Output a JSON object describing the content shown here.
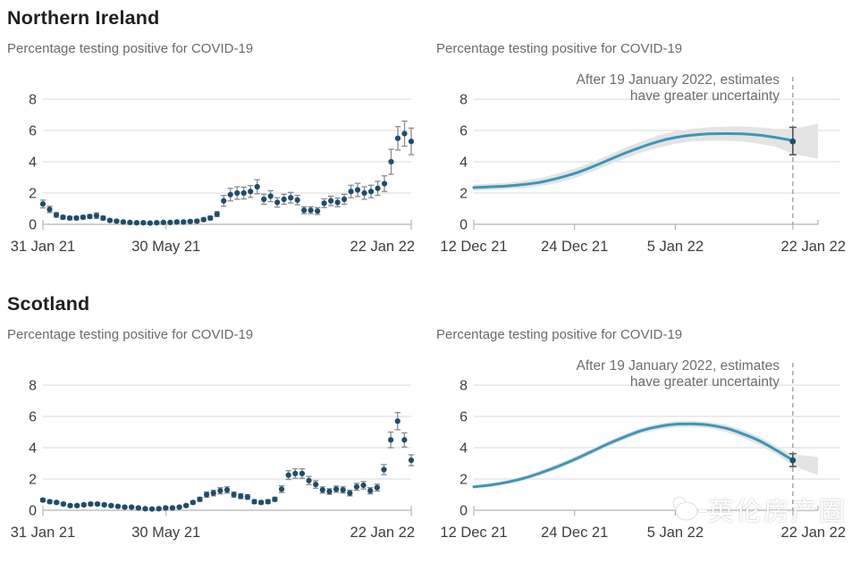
{
  "palette": {
    "title": "#202020",
    "subtitle": "#6b6b6b",
    "grid": "#d9d9d9",
    "axis": "#b5b5b5",
    "tick_label": "#3f3f3f",
    "point": "#1e4d6b",
    "error_bar": "#8c8c8c",
    "line": "#3e95ba",
    "band": "#e4e4e4",
    "dashed": "#9a9a9a",
    "annotation": "#6e6e6e",
    "endpoint_bar": "#555555"
  },
  "sections": [
    {
      "title": "Northern Ireland"
    },
    {
      "title": "Scotland"
    }
  ],
  "watermark": {
    "text": "英伦房产圈"
  },
  "chart_data": [
    {
      "type": "scatter",
      "region": "Northern Ireland",
      "title": "Percentage testing positive for COVID-19",
      "ylim": [
        0,
        8
      ],
      "yticks": [
        0,
        2,
        4,
        6,
        8
      ],
      "x_range_days": [
        0,
        356
      ],
      "x_ticks": [
        {
          "day": 0,
          "label": "31 Jan 21"
        },
        {
          "day": 119,
          "label": "30 May 21"
        },
        {
          "day": 356,
          "label": "22 Jan 22"
        }
      ],
      "values": [
        1.3,
        0.95,
        0.6,
        0.45,
        0.4,
        0.4,
        0.45,
        0.5,
        0.55,
        0.4,
        0.25,
        0.2,
        0.15,
        0.12,
        0.1,
        0.1,
        0.08,
        0.1,
        0.12,
        0.12,
        0.15,
        0.15,
        0.18,
        0.2,
        0.3,
        0.4,
        0.65,
        1.5,
        1.9,
        2.0,
        2.0,
        2.1,
        2.4,
        1.6,
        1.8,
        1.4,
        1.6,
        1.7,
        1.55,
        0.9,
        0.9,
        0.85,
        1.35,
        1.5,
        1.4,
        1.6,
        2.1,
        2.2,
        2.0,
        2.1,
        2.3,
        2.6,
        4.0,
        5.5,
        5.8,
        5.3
      ],
      "errors": [
        0.25,
        0.2,
        0.15,
        0.12,
        0.1,
        0.1,
        0.1,
        0.12,
        0.18,
        0.12,
        0.08,
        0.07,
        0.06,
        0.05,
        0.05,
        0.05,
        0.04,
        0.05,
        0.05,
        0.05,
        0.06,
        0.06,
        0.07,
        0.08,
        0.1,
        0.12,
        0.16,
        0.35,
        0.4,
        0.4,
        0.38,
        0.38,
        0.45,
        0.32,
        0.35,
        0.3,
        0.32,
        0.34,
        0.3,
        0.22,
        0.22,
        0.22,
        0.28,
        0.3,
        0.28,
        0.32,
        0.4,
        0.42,
        0.4,
        0.4,
        0.45,
        0.5,
        0.8,
        0.75,
        0.8,
        0.85
      ]
    },
    {
      "type": "line",
      "region": "Northern Ireland",
      "title": "Percentage testing positive for COVID-19",
      "annotation": [
        "After 19 January 2022, estimates",
        "have greater uncertainty"
      ],
      "ylim": [
        0,
        8
      ],
      "yticks": [
        0,
        2,
        4,
        6,
        8
      ],
      "x_range_days": [
        0,
        41
      ],
      "x_ticks": [
        {
          "day": 0,
          "label": "12 Dec 21"
        },
        {
          "day": 12,
          "label": "24 Dec 21"
        },
        {
          "day": 24,
          "label": "5 Jan 22"
        },
        {
          "day": 38,
          "label": "22 Jan 22",
          "label_day": 41
        }
      ],
      "dashed_day": 38,
      "x_days": [
        0,
        2,
        4,
        6,
        8,
        10,
        12,
        14,
        16,
        18,
        20,
        22,
        24,
        26,
        28,
        30,
        32,
        34,
        36,
        38
      ],
      "values": [
        2.35,
        2.4,
        2.45,
        2.55,
        2.7,
        2.95,
        3.25,
        3.65,
        4.1,
        4.55,
        4.95,
        5.3,
        5.55,
        5.7,
        5.78,
        5.8,
        5.78,
        5.7,
        5.55,
        5.35
      ],
      "band_days": [
        0,
        2,
        4,
        6,
        8,
        10,
        12,
        14,
        16,
        18,
        20,
        22,
        24,
        26,
        28,
        30,
        32,
        34,
        36,
        38,
        39.5,
        41
      ],
      "band_lo": [
        2.15,
        2.2,
        2.25,
        2.3,
        2.45,
        2.65,
        2.95,
        3.35,
        3.8,
        4.2,
        4.6,
        4.9,
        5.15,
        5.3,
        5.35,
        5.35,
        5.3,
        5.15,
        4.95,
        4.5,
        4.35,
        4.2
      ],
      "band_hi": [
        2.55,
        2.6,
        2.65,
        2.8,
        2.95,
        3.25,
        3.55,
        3.95,
        4.4,
        4.9,
        5.3,
        5.7,
        5.95,
        6.1,
        6.2,
        6.25,
        6.25,
        6.2,
        6.1,
        6.1,
        6.25,
        6.45
      ],
      "end_point": {
        "day": 38,
        "value": 5.3,
        "lo": 4.45,
        "hi": 6.2
      }
    },
    {
      "type": "scatter",
      "region": "Scotland",
      "title": "Percentage testing positive for COVID-19",
      "ylim": [
        0,
        8
      ],
      "yticks": [
        0,
        2,
        4,
        6,
        8
      ],
      "x_range_days": [
        0,
        356
      ],
      "x_ticks": [
        {
          "day": 0,
          "label": "31 Jan 21"
        },
        {
          "day": 119,
          "label": "30 May 21"
        },
        {
          "day": 356,
          "label": "22 Jan 22"
        }
      ],
      "values": [
        0.65,
        0.55,
        0.5,
        0.4,
        0.3,
        0.3,
        0.35,
        0.4,
        0.4,
        0.35,
        0.3,
        0.25,
        0.2,
        0.2,
        0.15,
        0.1,
        0.08,
        0.1,
        0.15,
        0.15,
        0.2,
        0.3,
        0.5,
        0.7,
        1.0,
        1.1,
        1.25,
        1.3,
        1.0,
        0.9,
        0.85,
        0.55,
        0.5,
        0.55,
        0.7,
        1.35,
        2.25,
        2.35,
        2.35,
        1.9,
        1.65,
        1.3,
        1.2,
        1.35,
        1.3,
        1.1,
        1.5,
        1.6,
        1.25,
        1.45,
        2.6,
        4.5,
        5.7,
        4.5,
        3.2
      ],
      "errors": [
        0.1,
        0.09,
        0.08,
        0.08,
        0.07,
        0.07,
        0.07,
        0.08,
        0.08,
        0.07,
        0.07,
        0.06,
        0.06,
        0.06,
        0.05,
        0.04,
        0.04,
        0.04,
        0.05,
        0.05,
        0.06,
        0.08,
        0.1,
        0.13,
        0.17,
        0.18,
        0.2,
        0.2,
        0.17,
        0.16,
        0.15,
        0.12,
        0.1,
        0.12,
        0.13,
        0.22,
        0.28,
        0.3,
        0.3,
        0.26,
        0.24,
        0.2,
        0.18,
        0.2,
        0.2,
        0.18,
        0.22,
        0.24,
        0.2,
        0.22,
        0.32,
        0.5,
        0.55,
        0.45,
        0.35
      ]
    },
    {
      "type": "line",
      "region": "Scotland",
      "title": "Percentage testing positive for COVID-19",
      "annotation": [
        "After 19 January 2022, estimates",
        "have greater uncertainty"
      ],
      "ylim": [
        0,
        8
      ],
      "yticks": [
        0,
        2,
        4,
        6,
        8
      ],
      "x_range_days": [
        0,
        41
      ],
      "x_ticks": [
        {
          "day": 0,
          "label": "12 Dec 21"
        },
        {
          "day": 12,
          "label": "24 Dec 21"
        },
        {
          "day": 24,
          "label": "5 Jan 22"
        },
        {
          "day": 38,
          "label": "22 Jan 22",
          "label_day": 41
        }
      ],
      "dashed_day": 38,
      "x_days": [
        0,
        2,
        4,
        6,
        8,
        10,
        12,
        14,
        16,
        18,
        20,
        22,
        24,
        26,
        28,
        30,
        32,
        34,
        36,
        38
      ],
      "values": [
        1.5,
        1.62,
        1.8,
        2.05,
        2.4,
        2.8,
        3.25,
        3.75,
        4.25,
        4.7,
        5.1,
        5.35,
        5.5,
        5.52,
        5.45,
        5.25,
        4.9,
        4.45,
        3.85,
        3.2
      ],
      "band_days": [
        0,
        2,
        4,
        6,
        8,
        10,
        12,
        14,
        16,
        18,
        20,
        22,
        24,
        26,
        28,
        30,
        32,
        34,
        36,
        38,
        39.5,
        41
      ],
      "band_lo": [
        1.4,
        1.5,
        1.68,
        1.9,
        2.25,
        2.62,
        3.08,
        3.58,
        4.08,
        4.52,
        4.92,
        5.15,
        5.3,
        5.32,
        5.25,
        5.02,
        4.65,
        4.18,
        3.58,
        2.85,
        2.55,
        2.25
      ],
      "band_hi": [
        1.6,
        1.74,
        1.92,
        2.2,
        2.55,
        2.98,
        3.42,
        3.92,
        4.42,
        4.88,
        5.28,
        5.55,
        5.7,
        5.72,
        5.65,
        5.48,
        5.15,
        4.72,
        4.12,
        3.55,
        3.5,
        3.4
      ],
      "end_point": {
        "day": 38,
        "value": 3.2,
        "lo": 2.8,
        "hi": 3.62
      }
    }
  ]
}
